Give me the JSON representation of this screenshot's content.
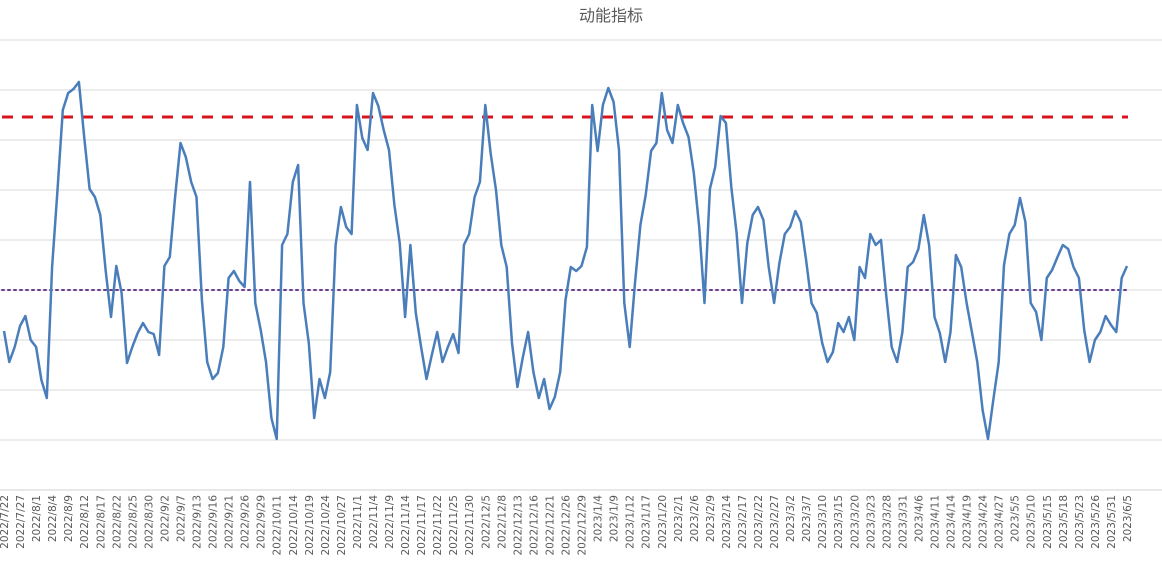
{
  "chart_data": {
    "type": "line",
    "title": "动能指标",
    "xlabel": "",
    "ylabel": "",
    "ylim": [
      0,
      9
    ],
    "y_tick_labels_shown": false,
    "grid": true,
    "legend": "none",
    "points_per_tick_label": 3,
    "x_tick_labels": [
      "2022/7/22",
      "2022/7/27",
      "2022/8/1",
      "2022/8/4",
      "2022/8/9",
      "2022/8/12",
      "2022/8/17",
      "2022/8/22",
      "2022/8/25",
      "2022/8/30",
      "2022/9/2",
      "2022/9/7",
      "2022/9/13",
      "2022/9/16",
      "2022/9/21",
      "2022/9/26",
      "2022/9/29",
      "2022/10/11",
      "2022/10/14",
      "2022/10/19",
      "2022/10/24",
      "2022/10/27",
      "2022/11/1",
      "2022/11/4",
      "2022/11/9",
      "2022/11/14",
      "2022/11/17",
      "2022/11/22",
      "2022/11/25",
      "2022/11/30",
      "2022/12/5",
      "2022/12/8",
      "2022/12/13",
      "2022/12/16",
      "2022/12/21",
      "2022/12/26",
      "2022/12/29",
      "2023/1/4",
      "2023/1/9",
      "2023/1/12",
      "2023/1/17",
      "2023/1/20",
      "2023/2/1",
      "2023/2/6",
      "2023/2/9",
      "2023/2/14",
      "2023/2/17",
      "2023/2/22",
      "2023/2/27",
      "2023/3/2",
      "2023/3/7",
      "2023/3/10",
      "2023/3/15",
      "2023/3/20",
      "2023/3/23",
      "2023/3/28",
      "2023/3/31",
      "2023/4/6",
      "2023/4/11",
      "2023/4/14",
      "2023/4/19",
      "2023/4/24",
      "2023/4/27",
      "2023/5/5",
      "2023/5/10",
      "2023/5/15",
      "2023/5/18",
      "2023/5/23",
      "2023/5/26",
      "2023/5/31",
      "2023/6/5"
    ],
    "series": [
      {
        "color": "#4a7ebb",
        "values": [
          3.18,
          2.56,
          2.86,
          3.28,
          3.48,
          3.0,
          2.86,
          2.2,
          1.84,
          4.46,
          6.0,
          7.6,
          7.94,
          8.02,
          8.16,
          7.06,
          6.02,
          5.86,
          5.5,
          4.4,
          3.46,
          4.48,
          3.94,
          2.54,
          2.86,
          3.14,
          3.34,
          3.16,
          3.12,
          2.7,
          4.48,
          4.66,
          5.86,
          6.94,
          6.66,
          6.16,
          5.86,
          3.8,
          2.56,
          2.22,
          2.34,
          2.86,
          4.24,
          4.38,
          4.18,
          4.06,
          6.16,
          3.74,
          3.2,
          2.56,
          1.44,
          1.02,
          4.9,
          5.12,
          6.16,
          6.5,
          3.74,
          2.94,
          1.44,
          2.22,
          1.84,
          2.36,
          4.9,
          5.66,
          5.26,
          5.12,
          7.7,
          7.04,
          6.8,
          7.94,
          7.68,
          7.2,
          6.8,
          5.7,
          4.94,
          3.46,
          4.9,
          3.54,
          2.86,
          2.22,
          2.7,
          3.16,
          2.56,
          2.86,
          3.12,
          2.74,
          4.9,
          5.12,
          5.86,
          6.16,
          7.7,
          6.74,
          6.0,
          4.9,
          4.46,
          2.94,
          2.06,
          2.64,
          3.16,
          2.36,
          1.84,
          2.22,
          1.62,
          1.86,
          2.36,
          3.8,
          4.46,
          4.38,
          4.48,
          4.86,
          7.7,
          6.78,
          7.7,
          8.04,
          7.76,
          6.8,
          3.74,
          2.86,
          4.14,
          5.3,
          5.9,
          6.78,
          6.94,
          7.94,
          7.2,
          6.94,
          7.7,
          7.34,
          7.06,
          6.34,
          5.26,
          3.74,
          6.02,
          6.46,
          7.48,
          7.34,
          6.06,
          5.14,
          3.74,
          4.94,
          5.5,
          5.66,
          5.4,
          4.46,
          3.74,
          4.54,
          5.12,
          5.26,
          5.58,
          5.36,
          4.6,
          3.74,
          3.54,
          2.94,
          2.56,
          2.76,
          3.34,
          3.16,
          3.46,
          3.0,
          4.46,
          4.24,
          5.12,
          4.9,
          5.0,
          3.86,
          2.86,
          2.56,
          3.16,
          4.46,
          4.56,
          4.82,
          5.5,
          4.9,
          3.46,
          3.14,
          2.56,
          3.16,
          4.7,
          4.46,
          3.74,
          3.16,
          2.56,
          1.6,
          1.02,
          1.8,
          2.56,
          4.5,
          5.12,
          5.3,
          5.84,
          5.36,
          3.74,
          3.56,
          3.0,
          4.24,
          4.4,
          4.66,
          4.9,
          4.82,
          4.46,
          4.24,
          3.2,
          2.56,
          3.0,
          3.16,
          3.48,
          3.3,
          3.16,
          4.24,
          4.48
        ]
      }
    ],
    "reference_lines": [
      {
        "value": 7.46,
        "style": "dashed",
        "color": "#d9141c"
      },
      {
        "value": 4.0,
        "style": "dotted",
        "color": "#6a3d8a"
      }
    ]
  }
}
